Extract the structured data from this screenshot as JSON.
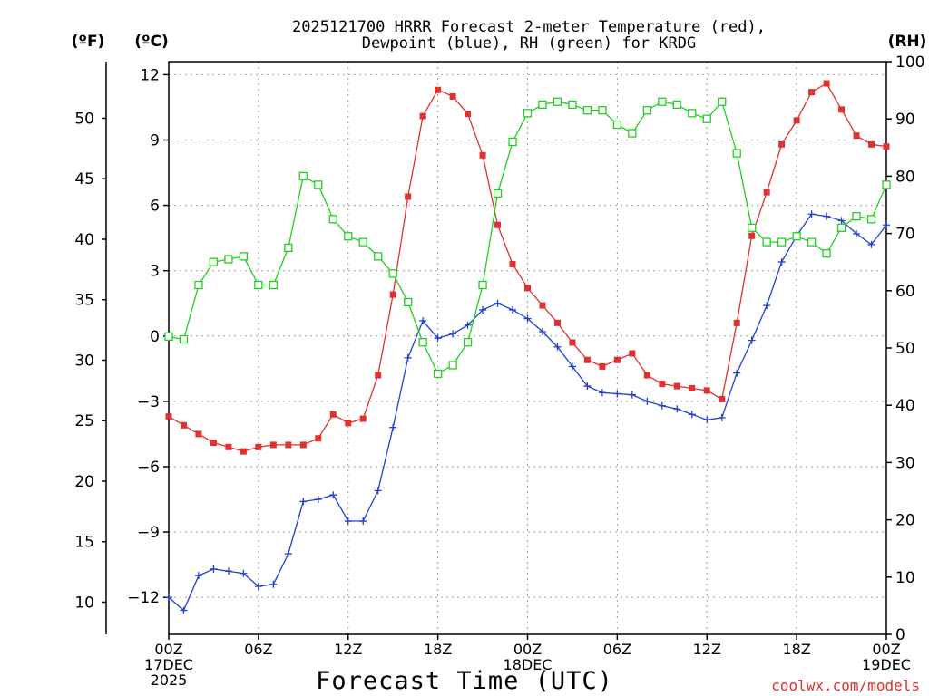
{
  "chart_data": {
    "type": "line",
    "title_lines": [
      "2025121700 HRRR Forecast 2-meter Temperature (red),",
      "Dewpoint (blue), RH (green) for KRDG"
    ],
    "unit_labels": {
      "fahrenheit": "(ºF)",
      "celsius": "(ºC)",
      "rh": "(RH)"
    },
    "xlabel": "Forecast Time (UTC)",
    "credit": "coolwx.com/models",
    "x_range_hours": [
      0,
      48
    ],
    "x_ticks": [
      {
        "hour": 0,
        "lines": [
          "00Z",
          "17DEC",
          "2025"
        ]
      },
      {
        "hour": 6,
        "lines": [
          "06Z"
        ]
      },
      {
        "hour": 12,
        "lines": [
          "12Z"
        ]
      },
      {
        "hour": 18,
        "lines": [
          "18Z"
        ]
      },
      {
        "hour": 24,
        "lines": [
          "00Z",
          "18DEC"
        ]
      },
      {
        "hour": 30,
        "lines": [
          "06Z"
        ]
      },
      {
        "hour": 36,
        "lines": [
          "12Z"
        ]
      },
      {
        "hour": 42,
        "lines": [
          "18Z"
        ]
      },
      {
        "hour": 48,
        "lines": [
          "00Z",
          "19DEC"
        ]
      }
    ],
    "celsius_axis": {
      "range": [
        -13.7,
        12.6
      ],
      "ticks": [
        -12,
        -9,
        -6,
        -3,
        0,
        3,
        6,
        9,
        12
      ],
      "tick_labels": [
        "−12",
        "−9",
        "−6",
        "−3",
        "0",
        "3",
        "6",
        "9",
        "12"
      ]
    },
    "fahrenheit_axis": {
      "ticks": [
        10,
        15,
        20,
        25,
        30,
        35,
        40,
        45,
        50
      ],
      "tick_labels": [
        "10",
        "15",
        "20",
        "25",
        "30",
        "35",
        "40",
        "45",
        "50"
      ]
    },
    "rh_axis": {
      "range": [
        0,
        100
      ],
      "ticks": [
        0,
        10,
        20,
        30,
        40,
        50,
        60,
        70,
        80,
        90,
        100
      ],
      "tick_labels": [
        "0",
        "10",
        "20",
        "30",
        "40",
        "50",
        "60",
        "70",
        "80",
        "90",
        "100"
      ]
    },
    "grid": true,
    "series": [
      {
        "key": "temperature",
        "color": "#e03030",
        "marker": "filled-square",
        "axis": "celsius",
        "x": [
          0,
          1,
          2,
          3,
          4,
          5,
          6,
          7,
          8,
          9,
          10,
          11,
          12,
          13,
          14,
          15,
          16,
          17,
          18,
          19,
          20,
          21,
          22,
          23,
          24,
          25,
          26,
          27,
          28,
          29,
          30,
          31,
          32,
          33,
          34,
          35,
          36,
          37,
          38,
          39,
          40,
          41,
          42,
          43,
          44,
          45,
          46,
          47,
          48
        ],
        "values": [
          -3.7,
          -4.1,
          -4.5,
          -4.9,
          -5.1,
          -5.3,
          -5.1,
          -5.0,
          -5.0,
          -5.0,
          -4.7,
          -3.6,
          -4.0,
          -3.8,
          -1.8,
          1.9,
          6.4,
          10.1,
          11.3,
          11.0,
          10.2,
          8.3,
          5.1,
          3.3,
          2.2,
          1.4,
          0.6,
          -0.3,
          -1.1,
          -1.4,
          -1.1,
          -0.8,
          -1.8,
          -2.2,
          -2.3,
          -2.4,
          -2.5,
          -2.9,
          0.6,
          4.6,
          6.6,
          8.8,
          9.9,
          11.2,
          11.6,
          10.4,
          9.2,
          8.8,
          8.7
        ]
      },
      {
        "key": "dewpoint",
        "color": "#2040d0",
        "marker": "plus",
        "axis": "celsius",
        "x": [
          0,
          1,
          2,
          3,
          4,
          5,
          6,
          7,
          8,
          9,
          10,
          11,
          12,
          13,
          14,
          15,
          16,
          17,
          18,
          19,
          20,
          21,
          22,
          23,
          24,
          25,
          26,
          27,
          28,
          29,
          30,
          31,
          32,
          33,
          34,
          35,
          36,
          37,
          38,
          39,
          40,
          41,
          42,
          43,
          44,
          45,
          46,
          47,
          48
        ],
        "values": [
          -12.0,
          -12.6,
          -11.0,
          -10.7,
          -10.8,
          -10.9,
          -11.5,
          -11.4,
          -10.0,
          -7.6,
          -7.5,
          -7.3,
          -8.5,
          -8.5,
          -7.1,
          -4.2,
          -1.0,
          0.7,
          -0.1,
          0.1,
          0.5,
          1.2,
          1.5,
          1.2,
          0.8,
          0.2,
          -0.5,
          -1.4,
          -2.3,
          -2.6,
          -2.65,
          -2.7,
          -3.0,
          -3.2,
          -3.35,
          -3.6,
          -3.85,
          -3.75,
          -1.7,
          -0.2,
          1.4,
          3.4,
          4.6,
          5.6,
          5.5,
          5.3,
          4.7,
          4.2,
          5.1
        ]
      },
      {
        "key": "rh",
        "color": "#20d020",
        "marker": "open-square",
        "axis": "rh",
        "x": [
          0,
          1,
          2,
          3,
          4,
          5,
          6,
          7,
          8,
          9,
          10,
          11,
          12,
          13,
          14,
          15,
          16,
          17,
          18,
          19,
          20,
          21,
          22,
          23,
          24,
          25,
          26,
          27,
          28,
          29,
          30,
          31,
          32,
          33,
          34,
          35,
          36,
          37,
          38,
          39,
          40,
          41,
          42,
          43,
          44,
          45,
          46,
          47,
          48
        ],
        "values": [
          52,
          51.5,
          61,
          65,
          65.5,
          66,
          61,
          61,
          67.5,
          80,
          78.5,
          72.5,
          69.5,
          68.5,
          66,
          63,
          58,
          51,
          45.5,
          47,
          51,
          61,
          77,
          86,
          91,
          92.5,
          93,
          92.5,
          91.5,
          91.5,
          89,
          87.5,
          91.5,
          93,
          92.5,
          91,
          90,
          93,
          84,
          71,
          68.5,
          68.5,
          69.5,
          68.5,
          66.5,
          71,
          73,
          72.5,
          78.5
        ]
      }
    ]
  }
}
